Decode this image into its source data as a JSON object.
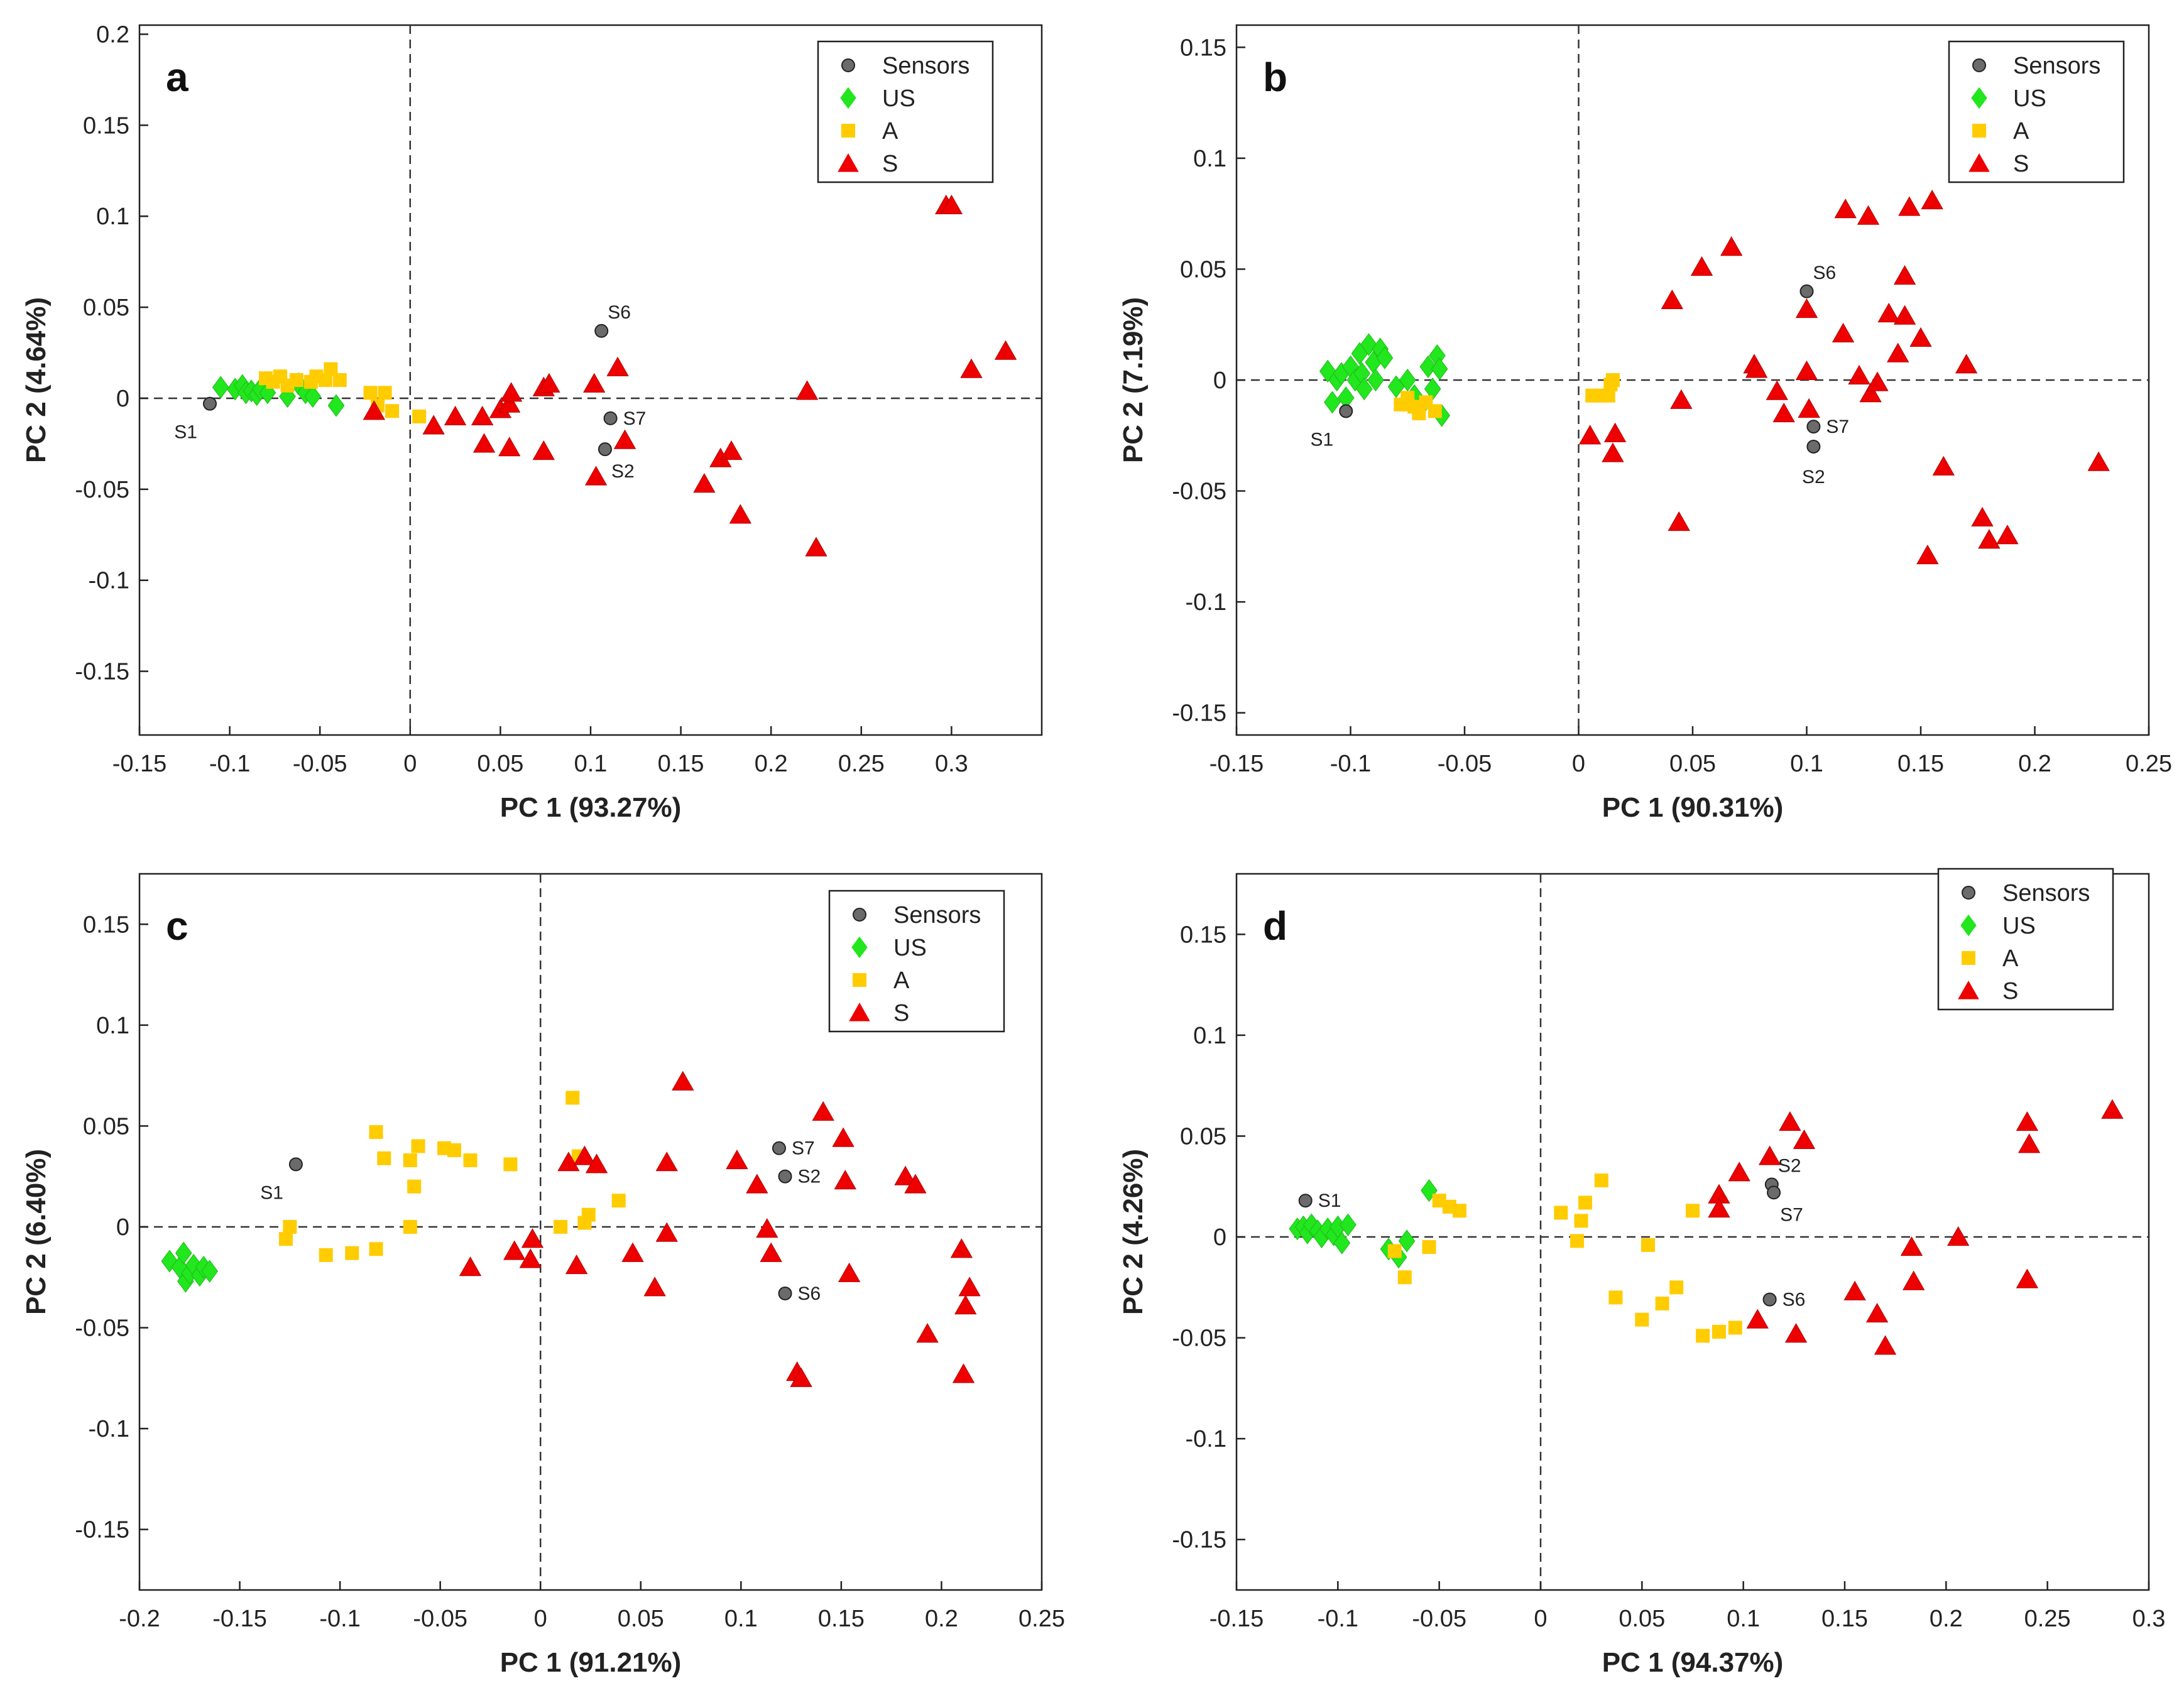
{
  "legend": {
    "sensors": "Sensors",
    "us": "US",
    "a": "A",
    "s": "S"
  },
  "colors": {
    "sensors": "#6b6b6b",
    "us": "#22e61e",
    "a": "#ffcc00",
    "s": "#ee0000",
    "axis": "#222222"
  },
  "chart_data": [
    {
      "type": "scatter",
      "panel_label": "a",
      "xlabel": "PC 1 (93.27%)",
      "ylabel": "PC 2 (4.64%)",
      "xlim": [
        -0.15,
        0.35
      ],
      "ylim": [
        -0.185,
        0.205
      ],
      "xticks": [
        -0.15,
        -0.1,
        -0.05,
        0,
        0.05,
        0.1,
        0.15,
        0.2,
        0.25,
        0.3
      ],
      "xtick_labels": [
        "-0.15",
        "-0.1",
        "-0.05",
        "0",
        "0.05",
        "0.1",
        "0.15",
        "0.2",
        "0.25",
        "0.3"
      ],
      "yticks": [
        -0.15,
        -0.1,
        -0.05,
        0,
        0.05,
        0.1,
        0.15,
        0.2
      ],
      "ytick_labels": [
        "-0.15",
        "-0.1",
        "-0.05",
        "0",
        "0.05",
        "0.1",
        "0.15",
        "0.2"
      ],
      "sensors": [
        {
          "x": -0.111,
          "y": -0.003,
          "label": "S1",
          "pos": "bl"
        },
        {
          "x": 0.106,
          "y": 0.037,
          "label": "S6",
          "pos": "tr"
        },
        {
          "x": 0.111,
          "y": -0.011,
          "label": "S7",
          "pos": "r"
        },
        {
          "x": 0.108,
          "y": -0.028,
          "label": "S2",
          "pos": "br"
        }
      ],
      "US": [
        [
          -0.105,
          0.006
        ],
        [
          -0.097,
          0.005
        ],
        [
          -0.093,
          0.007
        ],
        [
          -0.091,
          0.003
        ],
        [
          -0.088,
          0.004
        ],
        [
          -0.085,
          0.002
        ],
        [
          -0.083,
          0.005
        ],
        [
          -0.079,
          0.003
        ],
        [
          -0.068,
          0.001
        ],
        [
          -0.062,
          0.008
        ],
        [
          -0.058,
          0.003
        ],
        [
          -0.054,
          0.001
        ],
        [
          -0.041,
          -0.004
        ]
      ],
      "A": [
        [
          -0.08,
          0.011
        ],
        [
          -0.076,
          0.009
        ],
        [
          -0.072,
          0.012
        ],
        [
          -0.068,
          0.007
        ],
        [
          -0.063,
          0.01
        ],
        [
          -0.055,
          0.009
        ],
        [
          -0.052,
          0.012
        ],
        [
          -0.047,
          0.01
        ],
        [
          -0.044,
          0.016
        ],
        [
          -0.039,
          0.01
        ],
        [
          -0.022,
          0.003
        ],
        [
          -0.018,
          -0.004
        ],
        [
          -0.014,
          0.003
        ],
        [
          -0.01,
          -0.007
        ],
        [
          0.005,
          -0.01
        ]
      ],
      "S": [
        [
          -0.02,
          -0.007
        ],
        [
          0.013,
          -0.015
        ],
        [
          0.025,
          -0.01
        ],
        [
          0.04,
          -0.01
        ],
        [
          0.041,
          -0.025
        ],
        [
          0.05,
          -0.006
        ],
        [
          0.055,
          -0.003
        ],
        [
          0.056,
          0.003
        ],
        [
          0.055,
          -0.027
        ],
        [
          0.074,
          -0.029
        ],
        [
          0.074,
          0.006
        ],
        [
          0.077,
          0.008
        ],
        [
          0.102,
          0.008
        ],
        [
          0.115,
          0.017
        ],
        [
          0.119,
          -0.023
        ],
        [
          0.103,
          -0.043
        ],
        [
          0.163,
          -0.047
        ],
        [
          0.172,
          -0.033
        ],
        [
          0.178,
          -0.029
        ],
        [
          0.183,
          -0.064
        ],
        [
          0.22,
          0.004
        ],
        [
          0.225,
          -0.082
        ],
        [
          0.297,
          0.106
        ],
        [
          0.3,
          0.106
        ],
        [
          0.311,
          0.016
        ],
        [
          0.33,
          0.026
        ]
      ]
    },
    {
      "type": "scatter",
      "panel_label": "b",
      "xlabel": "PC 1 (90.31%)",
      "ylabel": "PC 2 (7.19%)",
      "xlim": [
        -0.15,
        0.25
      ],
      "ylim": [
        -0.16,
        0.16
      ],
      "xticks": [
        -0.15,
        -0.1,
        -0.05,
        0,
        0.05,
        0.1,
        0.15,
        0.2,
        0.25
      ],
      "xtick_labels": [
        "-0.15",
        "-0.1",
        "-0.05",
        "0",
        "0.05",
        "0.1",
        "0.15",
        "0.2",
        "0.25"
      ],
      "yticks": [
        -0.15,
        -0.1,
        -0.05,
        0,
        0.05,
        0.1,
        0.15
      ],
      "ytick_labels": [
        "-0.15",
        "-0.1",
        "-0.05",
        "0",
        "0.05",
        "0.1",
        "0.15"
      ],
      "sensors": [
        {
          "x": -0.102,
          "y": -0.014,
          "label": "S1",
          "pos": "bl"
        },
        {
          "x": 0.1,
          "y": 0.04,
          "label": "S6",
          "pos": "tr"
        },
        {
          "x": 0.103,
          "y": -0.03,
          "label": "S2",
          "pos": "b"
        },
        {
          "x": 0.103,
          "y": -0.021,
          "label": "S7",
          "pos": "r"
        }
      ],
      "US": [
        [
          -0.11,
          0.004
        ],
        [
          -0.108,
          -0.01
        ],
        [
          -0.106,
          0.0
        ],
        [
          -0.104,
          0.003
        ],
        [
          -0.102,
          -0.008
        ],
        [
          -0.1,
          0.006
        ],
        [
          -0.098,
          0.0
        ],
        [
          -0.096,
          0.012
        ],
        [
          -0.095,
          0.003
        ],
        [
          -0.094,
          -0.004
        ],
        [
          -0.092,
          0.016
        ],
        [
          -0.09,
          0.008
        ],
        [
          -0.089,
          0.0
        ],
        [
          -0.087,
          0.014
        ],
        [
          -0.085,
          0.01
        ],
        [
          -0.08,
          -0.003
        ],
        [
          -0.075,
          0.0
        ],
        [
          -0.072,
          -0.007
        ],
        [
          -0.07,
          -0.013
        ],
        [
          -0.066,
          0.006
        ],
        [
          -0.064,
          -0.004
        ],
        [
          -0.062,
          0.011
        ],
        [
          -0.061,
          0.005
        ],
        [
          -0.06,
          -0.016
        ]
      ],
      "A": [
        [
          -0.078,
          -0.011
        ],
        [
          -0.075,
          -0.008
        ],
        [
          -0.072,
          -0.012
        ],
        [
          -0.07,
          -0.015
        ],
        [
          -0.067,
          -0.01
        ],
        [
          -0.063,
          -0.014
        ],
        [
          0.006,
          -0.007
        ],
        [
          0.01,
          -0.007
        ],
        [
          0.013,
          -0.007
        ],
        [
          0.014,
          -0.002
        ],
        [
          0.015,
          0.0
        ]
      ],
      "S": [
        [
          0.005,
          -0.025
        ],
        [
          0.016,
          -0.024
        ],
        [
          0.015,
          -0.033
        ],
        [
          0.041,
          0.036
        ],
        [
          0.045,
          -0.009
        ],
        [
          0.044,
          -0.064
        ],
        [
          0.054,
          0.051
        ],
        [
          0.067,
          0.06
        ],
        [
          0.077,
          0.007
        ],
        [
          0.078,
          0.005
        ],
        [
          0.087,
          -0.005
        ],
        [
          0.09,
          -0.015
        ],
        [
          0.1,
          0.032
        ],
        [
          0.1,
          0.004
        ],
        [
          0.101,
          -0.013
        ],
        [
          0.116,
          0.021
        ],
        [
          0.117,
          0.077
        ],
        [
          0.123,
          0.002
        ],
        [
          0.127,
          0.074
        ],
        [
          0.128,
          -0.006
        ],
        [
          0.131,
          -0.001
        ],
        [
          0.136,
          0.03
        ],
        [
          0.14,
          0.012
        ],
        [
          0.143,
          0.029
        ],
        [
          0.143,
          0.047
        ],
        [
          0.145,
          0.078
        ],
        [
          0.15,
          0.019
        ],
        [
          0.155,
          0.081
        ],
        [
          0.153,
          -0.079
        ],
        [
          0.16,
          -0.039
        ],
        [
          0.17,
          0.007
        ],
        [
          0.177,
          -0.062
        ],
        [
          0.18,
          -0.072
        ],
        [
          0.188,
          -0.07
        ],
        [
          0.228,
          -0.037
        ]
      ]
    },
    {
      "type": "scatter",
      "panel_label": "c",
      "xlabel": "PC 1 (91.21%)",
      "ylabel": "PC 2 (6.40%)",
      "xlim": [
        -0.2,
        0.25
      ],
      "ylim": [
        -0.18,
        0.175
      ],
      "xticks": [
        -0.2,
        -0.15,
        -0.1,
        -0.05,
        0,
        0.05,
        0.1,
        0.15,
        0.2,
        0.25
      ],
      "xtick_labels": [
        "-0.2",
        "-0.15",
        "-0.1",
        "-0.05",
        "0",
        "0.05",
        "0.1",
        "0.15",
        "0.2",
        "0.25"
      ],
      "yticks": [
        -0.15,
        -0.1,
        -0.05,
        0,
        0.05,
        0.1,
        0.15
      ],
      "ytick_labels": [
        "-0.15",
        "-0.1",
        "-0.05",
        "0",
        "0.05",
        "0.1",
        "0.15"
      ],
      "sensors": [
        {
          "x": -0.122,
          "y": 0.031,
          "label": "S1",
          "pos": "bl"
        },
        {
          "x": 0.119,
          "y": 0.039,
          "label": "S7",
          "pos": "r"
        },
        {
          "x": 0.122,
          "y": 0.025,
          "label": "S2",
          "pos": "r"
        },
        {
          "x": 0.122,
          "y": -0.033,
          "label": "S6",
          "pos": "r"
        }
      ],
      "US": [
        [
          -0.185,
          -0.017
        ],
        [
          -0.18,
          -0.02
        ],
        [
          -0.178,
          -0.013
        ],
        [
          -0.177,
          -0.027
        ],
        [
          -0.175,
          -0.023
        ],
        [
          -0.173,
          -0.019
        ],
        [
          -0.17,
          -0.024
        ],
        [
          -0.168,
          -0.02
        ],
        [
          -0.165,
          -0.022
        ]
      ],
      "A": [
        [
          -0.127,
          -0.006
        ],
        [
          -0.125,
          0.0
        ],
        [
          -0.107,
          -0.014
        ],
        [
          -0.094,
          -0.013
        ],
        [
          -0.082,
          -0.011
        ],
        [
          -0.082,
          0.047
        ],
        [
          -0.078,
          0.034
        ],
        [
          -0.065,
          0.033
        ],
        [
          -0.063,
          0.02
        ],
        [
          -0.061,
          0.04
        ],
        [
          -0.065,
          0.0
        ],
        [
          -0.048,
          0.039
        ],
        [
          -0.043,
          0.038
        ],
        [
          -0.035,
          0.033
        ],
        [
          -0.015,
          0.031
        ],
        [
          0.01,
          0.0
        ],
        [
          0.016,
          0.064
        ],
        [
          0.019,
          0.035
        ],
        [
          0.022,
          0.002
        ],
        [
          0.024,
          0.006
        ],
        [
          0.039,
          0.013
        ]
      ],
      "S": [
        [
          -0.035,
          -0.02
        ],
        [
          -0.013,
          -0.012
        ],
        [
          -0.005,
          -0.016
        ],
        [
          -0.004,
          -0.006
        ],
        [
          0.014,
          0.032
        ],
        [
          0.018,
          -0.019
        ],
        [
          0.022,
          0.035
        ],
        [
          0.028,
          0.031
        ],
        [
          0.046,
          -0.013
        ],
        [
          0.057,
          -0.03
        ],
        [
          0.063,
          0.032
        ],
        [
          0.063,
          -0.003
        ],
        [
          0.071,
          0.072
        ],
        [
          0.098,
          0.033
        ],
        [
          0.108,
          0.021
        ],
        [
          0.113,
          -0.001
        ],
        [
          0.115,
          -0.013
        ],
        [
          0.128,
          -0.072
        ],
        [
          0.13,
          -0.075
        ],
        [
          0.141,
          0.057
        ],
        [
          0.151,
          0.044
        ],
        [
          0.152,
          0.023
        ],
        [
          0.154,
          -0.023
        ],
        [
          0.182,
          0.025
        ],
        [
          0.187,
          0.021
        ],
        [
          0.193,
          -0.053
        ],
        [
          0.21,
          -0.011
        ],
        [
          0.212,
          -0.039
        ],
        [
          0.211,
          -0.073
        ],
        [
          0.214,
          -0.03
        ]
      ]
    },
    {
      "type": "scatter",
      "panel_label": "d",
      "xlabel": "PC 1 (94.37%)",
      "ylabel": "PC 2 (4.26%)",
      "xlim": [
        -0.15,
        0.3
      ],
      "ylim": [
        -0.175,
        0.18
      ],
      "xticks": [
        -0.15,
        -0.1,
        -0.05,
        0,
        0.05,
        0.1,
        0.15,
        0.2,
        0.25,
        0.3
      ],
      "xtick_labels": [
        "-0.15",
        "-0.1",
        "-0.05",
        "0",
        "0.05",
        "0.1",
        "0.15",
        "0.2",
        "0.25",
        "0.3"
      ],
      "yticks": [
        -0.15,
        -0.1,
        -0.05,
        0,
        0.05,
        0.1,
        0.15
      ],
      "ytick_labels": [
        "-0.15",
        "-0.1",
        "-0.05",
        "0",
        "0.05",
        "0.1",
        "0.15"
      ],
      "sensors": [
        {
          "x": -0.116,
          "y": 0.018,
          "label": "S1",
          "pos": "r"
        },
        {
          "x": 0.114,
          "y": 0.026,
          "label": "S2",
          "pos": "tr"
        },
        {
          "x": 0.115,
          "y": 0.022,
          "label": "S7",
          "pos": "br"
        },
        {
          "x": 0.113,
          "y": -0.031,
          "label": "S6",
          "pos": "r"
        }
      ],
      "US": [
        [
          -0.12,
          0.004
        ],
        [
          -0.117,
          0.005
        ],
        [
          -0.115,
          0.002
        ],
        [
          -0.113,
          0.006
        ],
        [
          -0.11,
          0.003
        ],
        [
          -0.108,
          0.0
        ],
        [
          -0.105,
          0.004
        ],
        [
          -0.102,
          0.001
        ],
        [
          -0.1,
          0.005
        ],
        [
          -0.098,
          -0.003
        ],
        [
          -0.095,
          0.006
        ],
        [
          -0.075,
          -0.006
        ],
        [
          -0.07,
          -0.01
        ],
        [
          -0.066,
          -0.002
        ],
        [
          -0.055,
          0.023
        ]
      ],
      "A": [
        [
          -0.072,
          -0.007
        ],
        [
          -0.067,
          -0.02
        ],
        [
          -0.055,
          -0.005
        ],
        [
          -0.05,
          0.018
        ],
        [
          -0.045,
          0.015
        ],
        [
          -0.04,
          0.013
        ],
        [
          0.01,
          0.012
        ],
        [
          0.018,
          -0.002
        ],
        [
          0.02,
          0.008
        ],
        [
          0.022,
          0.017
        ],
        [
          0.03,
          0.028
        ],
        [
          0.037,
          -0.03
        ],
        [
          0.05,
          -0.041
        ],
        [
          0.053,
          -0.004
        ],
        [
          0.06,
          -0.033
        ],
        [
          0.067,
          -0.025
        ],
        [
          0.075,
          0.013
        ],
        [
          0.08,
          -0.049
        ],
        [
          0.088,
          -0.047
        ],
        [
          0.096,
          -0.045
        ]
      ],
      "S": [
        [
          0.088,
          0.021
        ],
        [
          0.088,
          0.014
        ],
        [
          0.098,
          0.032
        ],
        [
          0.107,
          -0.041
        ],
        [
          0.113,
          0.04
        ],
        [
          0.123,
          0.057
        ],
        [
          0.126,
          -0.048
        ],
        [
          0.13,
          0.048
        ],
        [
          0.155,
          -0.027
        ],
        [
          0.166,
          -0.038
        ],
        [
          0.17,
          -0.054
        ],
        [
          0.183,
          -0.005
        ],
        [
          0.184,
          -0.022
        ],
        [
          0.206,
          0.0
        ],
        [
          0.24,
          0.057
        ],
        [
          0.241,
          0.046
        ],
        [
          0.24,
          -0.021
        ],
        [
          0.282,
          0.063
        ]
      ]
    }
  ]
}
